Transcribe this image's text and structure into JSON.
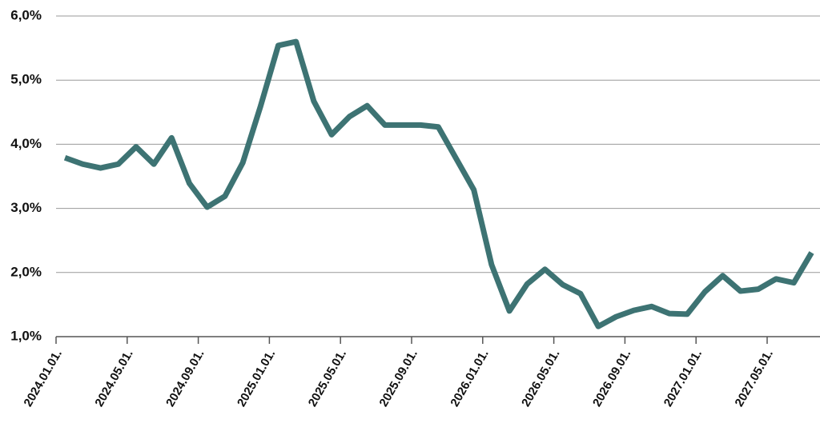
{
  "chart_data": {
    "type": "line",
    "categories": [
      "2024.01.01.",
      null,
      null,
      null,
      "2024.05.01.",
      null,
      null,
      null,
      "2024.09.01.",
      null,
      null,
      null,
      "2025.01.01.",
      null,
      null,
      null,
      "2025.05.01.",
      null,
      null,
      null,
      "2025.09.01.",
      null,
      null,
      null,
      "2026.01.01.",
      null,
      null,
      null,
      "2026.05.01.",
      null,
      null,
      null,
      "2026.09.01.",
      null,
      null,
      null,
      "2027.01.01.",
      null,
      null,
      null,
      "2027.05.01.",
      null,
      null
    ],
    "series": [
      {
        "color": "#3d7373",
        "values": [
          3.79,
          3.69,
          3.63,
          3.69,
          3.96,
          3.69,
          4.1,
          3.39,
          3.02,
          3.19,
          3.71,
          4.59,
          5.54,
          5.6,
          4.67,
          4.15,
          4.43,
          4.6,
          4.3,
          4.3,
          4.3,
          4.27,
          3.78,
          3.29,
          2.12,
          1.4,
          1.82,
          2.05,
          1.81,
          1.67,
          1.16,
          1.31,
          1.41,
          1.47,
          1.36,
          1.35,
          1.7,
          1.95,
          1.71,
          1.74,
          1.9,
          1.84,
          2.31
        ]
      }
    ],
    "ylim": [
      1,
      6
    ],
    "yticks": [
      {
        "value": 1,
        "label": "1,0%"
      },
      {
        "value": 2,
        "label": "2,0%"
      },
      {
        "value": 3,
        "label": "3,0%"
      },
      {
        "value": 4,
        "label": "4,0%"
      },
      {
        "value": 5,
        "label": "5,0%"
      },
      {
        "value": 6,
        "label": "6,0%"
      }
    ],
    "grid": true
  }
}
